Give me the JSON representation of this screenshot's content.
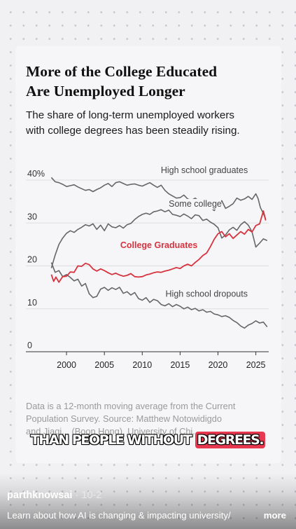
{
  "card": {
    "title_line1": "More of the College Educated",
    "title_line2": "Are Unemployed Longer",
    "subtitle_line1": "The share of long-term unemployed workers",
    "subtitle_line2": "with college degrees has been steadily rising.",
    "note_line1": "Data is a 12-month moving average from the Current",
    "note_line2": "Population Survey. Source: Matthew Notowidigdo",
    "note_line3": "and Jiaqi... (Boon Hong), University of Chi..."
  },
  "caption": {
    "text_pre": "THAN PEOPLE WITHOUT ",
    "text_highlight": "DEGREES."
  },
  "footer": {
    "username": "parthknowsai",
    "date": "10-2",
    "separator": "·",
    "description": "Learn about how AI is changing & impacting university/",
    "more_label": "more"
  },
  "colors": {
    "college_graduates": "#d7333f",
    "other_series": "#666666",
    "highlight": "#e8384f"
  },
  "chart_data": {
    "type": "line",
    "title": "More of the College Educated Are Unemployed Longer",
    "subtitle": "The share of long-term unemployed workers with college degrees has been steadily rising.",
    "xlabel": "",
    "ylabel": "",
    "ylim": [
      0,
      40
    ],
    "xlim": [
      1997.5,
      2026.7
    ],
    "y_ticks": [
      0,
      10,
      20,
      30,
      40
    ],
    "y_tick_labels": [
      "0",
      "10",
      "20",
      "30",
      "40%"
    ],
    "x_ticks": [
      2000,
      2005,
      2010,
      2015,
      2020,
      2025
    ],
    "x_tick_labels": [
      "2000",
      "2005",
      "2010",
      "2015",
      "2020",
      "2025"
    ],
    "grid": true,
    "series": [
      {
        "name": "High school graduates",
        "color": "#666666",
        "points": [
          [
            1998,
            40.6
          ],
          [
            1998.5,
            39.6
          ],
          [
            1999,
            39.4
          ],
          [
            1999.5,
            39.0
          ],
          [
            2000,
            38.5
          ],
          [
            2000.5,
            38.7
          ],
          [
            2001,
            38.9
          ],
          [
            2001.5,
            38.4
          ],
          [
            2002,
            38.0
          ],
          [
            2002.5,
            37.6
          ],
          [
            2003,
            37.8
          ],
          [
            2003.5,
            37.3
          ],
          [
            2004,
            37.8
          ],
          [
            2004.5,
            38.2
          ],
          [
            2005,
            38.8
          ],
          [
            2005.5,
            39.2
          ],
          [
            2006,
            38.5
          ],
          [
            2006.5,
            39.4
          ],
          [
            2007,
            39.6
          ],
          [
            2007.5,
            39.2
          ],
          [
            2008,
            38.8
          ],
          [
            2008.5,
            39.0
          ],
          [
            2009,
            39.1
          ],
          [
            2009.5,
            38.8
          ],
          [
            2010,
            38.6
          ],
          [
            2010.5,
            39.0
          ],
          [
            2011,
            39.4
          ],
          [
            2011.5,
            38.8
          ],
          [
            2012,
            38.3
          ],
          [
            2012.5,
            38.8
          ],
          [
            2013,
            37.6
          ],
          [
            2013.5,
            36.8
          ],
          [
            2014,
            36.3
          ],
          [
            2014.5,
            35.8
          ],
          [
            2015,
            35.9
          ],
          [
            2015.5,
            36.5
          ],
          [
            2016,
            35.6
          ],
          [
            2016.5,
            35.3
          ],
          [
            2017,
            35.8
          ],
          [
            2017.5,
            35.1
          ],
          [
            2018,
            34.8
          ],
          [
            2018.5,
            34.3
          ],
          [
            2019,
            33.6
          ],
          [
            2019.5,
            32.9
          ],
          [
            2020,
            34.0
          ],
          [
            2020.5,
            35.2
          ],
          [
            2021,
            33.4
          ],
          [
            2021.5,
            33.9
          ],
          [
            2022,
            34.5
          ],
          [
            2022.5,
            35.8
          ],
          [
            2023,
            35.3
          ],
          [
            2023.5,
            35.6
          ],
          [
            2024,
            36.2
          ],
          [
            2024.5,
            35.5
          ],
          [
            2025,
            36.8
          ],
          [
            2025.3,
            35.7
          ],
          [
            2025.6,
            33.6
          ],
          [
            2026,
            32.2
          ],
          [
            2026.3,
            30.9
          ]
        ]
      },
      {
        "name": "Some college",
        "color": "#666666",
        "points": [
          [
            1998,
            19.5
          ],
          [
            1998.5,
            22.5
          ],
          [
            1999,
            25.0
          ],
          [
            1999.5,
            26.5
          ],
          [
            2000,
            27.6
          ],
          [
            2000.5,
            28.2
          ],
          [
            2001,
            27.8
          ],
          [
            2001.5,
            28.5
          ],
          [
            2002,
            29.0
          ],
          [
            2002.5,
            29.6
          ],
          [
            2003,
            29.3
          ],
          [
            2003.5,
            29.8
          ],
          [
            2004,
            28.5
          ],
          [
            2004.5,
            29.5
          ],
          [
            2005,
            28.2
          ],
          [
            2005.5,
            29.8
          ],
          [
            2006,
            29.1
          ],
          [
            2006.5,
            28.9
          ],
          [
            2007,
            29.4
          ],
          [
            2007.5,
            28.8
          ],
          [
            2008,
            29.6
          ],
          [
            2008.5,
            29.9
          ],
          [
            2009,
            30.8
          ],
          [
            2009.5,
            31.5
          ],
          [
            2010,
            32.0
          ],
          [
            2010.5,
            32.3
          ],
          [
            2011,
            32.0
          ],
          [
            2011.5,
            32.6
          ],
          [
            2012,
            32.8
          ],
          [
            2012.5,
            33.1
          ],
          [
            2013,
            32.6
          ],
          [
            2013.5,
            33.0
          ],
          [
            2014,
            32.0
          ],
          [
            2014.5,
            31.8
          ],
          [
            2015,
            31.5
          ],
          [
            2015.5,
            32.1
          ],
          [
            2016,
            31.6
          ],
          [
            2016.5,
            31.0
          ],
          [
            2017,
            31.9
          ],
          [
            2017.5,
            31.7
          ],
          [
            2018,
            30.6
          ],
          [
            2018.5,
            30.9
          ],
          [
            2019,
            30.2
          ],
          [
            2019.5,
            29.7
          ],
          [
            2020,
            28.9
          ],
          [
            2020.5,
            26.5
          ],
          [
            2021,
            27.2
          ],
          [
            2021.5,
            28.4
          ],
          [
            2022,
            29.0
          ],
          [
            2022.5,
            28.3
          ],
          [
            2023,
            29.6
          ],
          [
            2023.5,
            30.3
          ],
          [
            2024,
            29.5
          ],
          [
            2024.5,
            27.9
          ],
          [
            2025,
            24.4
          ],
          [
            2025.5,
            25.3
          ],
          [
            2026,
            26.3
          ],
          [
            2026.5,
            25.9
          ]
        ]
      },
      {
        "name": "College Graduates",
        "color": "#d7333f",
        "points": [
          [
            1998,
            18.0
          ],
          [
            1998.3,
            16.4
          ],
          [
            1998.6,
            17.4
          ],
          [
            1999,
            16.2
          ],
          [
            1999.5,
            17.5
          ],
          [
            2000,
            17.6
          ],
          [
            2000.5,
            18.6
          ],
          [
            2001,
            18.5
          ],
          [
            2001.5,
            20.0
          ],
          [
            2002,
            19.9
          ],
          [
            2002.5,
            20.6
          ],
          [
            2003,
            20.3
          ],
          [
            2003.5,
            19.3
          ],
          [
            2004,
            18.8
          ],
          [
            2004.5,
            19.3
          ],
          [
            2005,
            18.9
          ],
          [
            2005.5,
            18.4
          ],
          [
            2006,
            18.0
          ],
          [
            2006.5,
            18.3
          ],
          [
            2007,
            17.9
          ],
          [
            2007.5,
            17.6
          ],
          [
            2008,
            17.8
          ],
          [
            2008.5,
            18.2
          ],
          [
            2009,
            17.5
          ],
          [
            2009.5,
            17.4
          ],
          [
            2010,
            17.5
          ],
          [
            2010.5,
            17.9
          ],
          [
            2011,
            18.1
          ],
          [
            2011.5,
            18.4
          ],
          [
            2012,
            18.6
          ],
          [
            2012.5,
            18.5
          ],
          [
            2013,
            18.8
          ],
          [
            2013.5,
            19.0
          ],
          [
            2014,
            19.3
          ],
          [
            2014.5,
            19.6
          ],
          [
            2015,
            19.4
          ],
          [
            2015.5,
            20.0
          ],
          [
            2016,
            20.4
          ],
          [
            2016.5,
            20.0
          ],
          [
            2017,
            20.8
          ],
          [
            2017.5,
            21.5
          ],
          [
            2018,
            22.4
          ],
          [
            2018.5,
            23.0
          ],
          [
            2019,
            24.5
          ],
          [
            2019.5,
            26.2
          ],
          [
            2020,
            27.5
          ],
          [
            2020.5,
            28.0
          ],
          [
            2021,
            26.8
          ],
          [
            2021.5,
            27.5
          ],
          [
            2022,
            26.4
          ],
          [
            2022.5,
            27.2
          ],
          [
            2023,
            28.0
          ],
          [
            2023.5,
            27.4
          ],
          [
            2024,
            28.5
          ],
          [
            2024.5,
            27.9
          ],
          [
            2025,
            29.4
          ],
          [
            2025.5,
            29.8
          ],
          [
            2026,
            32.8
          ],
          [
            2026.3,
            30.6
          ]
        ]
      },
      {
        "name": "High school dropouts",
        "color": "#666666",
        "points": [
          [
            1998,
            20.8
          ],
          [
            1998.5,
            18.5
          ],
          [
            1999,
            18.9
          ],
          [
            1999.5,
            17.5
          ],
          [
            2000,
            18.0
          ],
          [
            2000.5,
            17.3
          ],
          [
            2001,
            16.5
          ],
          [
            2001.5,
            16.9
          ],
          [
            2002,
            15.3
          ],
          [
            2002.5,
            15.9
          ],
          [
            2003,
            13.5
          ],
          [
            2003.5,
            12.6
          ],
          [
            2004,
            12.9
          ],
          [
            2004.5,
            14.6
          ],
          [
            2005,
            15.0
          ],
          [
            2005.5,
            14.3
          ],
          [
            2006,
            14.9
          ],
          [
            2006.5,
            14.5
          ],
          [
            2007,
            15.0
          ],
          [
            2007.5,
            13.6
          ],
          [
            2008,
            14.0
          ],
          [
            2008.5,
            13.2
          ],
          [
            2009,
            13.8
          ],
          [
            2009.5,
            12.4
          ],
          [
            2010,
            12.0
          ],
          [
            2010.5,
            12.6
          ],
          [
            2011,
            11.5
          ],
          [
            2011.5,
            12.2
          ],
          [
            2012,
            11.9
          ],
          [
            2012.5,
            11.0
          ],
          [
            2013,
            10.7
          ],
          [
            2013.5,
            11.2
          ],
          [
            2014,
            10.5
          ],
          [
            2014.5,
            11.0
          ],
          [
            2015,
            10.6
          ],
          [
            2015.5,
            10.0
          ],
          [
            2016,
            10.4
          ],
          [
            2016.5,
            9.8
          ],
          [
            2017,
            10.1
          ],
          [
            2017.5,
            9.5
          ],
          [
            2018,
            9.8
          ],
          [
            2018.5,
            9.2
          ],
          [
            2019,
            9.4
          ],
          [
            2019.5,
            8.8
          ],
          [
            2020,
            8.6
          ],
          [
            2020.5,
            8.2
          ],
          [
            2021,
            8.4
          ],
          [
            2021.5,
            8.0
          ],
          [
            2022,
            7.3
          ],
          [
            2022.5,
            6.8
          ],
          [
            2023,
            6.0
          ],
          [
            2023.5,
            5.5
          ],
          [
            2024,
            6.2
          ],
          [
            2024.5,
            6.6
          ],
          [
            2025,
            7.2
          ],
          [
            2025.5,
            6.7
          ],
          [
            2026,
            6.9
          ],
          [
            2026.5,
            5.8
          ]
        ]
      }
    ],
    "annotations": [
      {
        "text": "High school graduates",
        "series": "High school graduates"
      },
      {
        "text": "Some college",
        "series": "Some college"
      },
      {
        "text": "College Graduates",
        "series": "College Graduates"
      },
      {
        "text": "High school dropouts",
        "series": "High school dropouts"
      }
    ]
  }
}
